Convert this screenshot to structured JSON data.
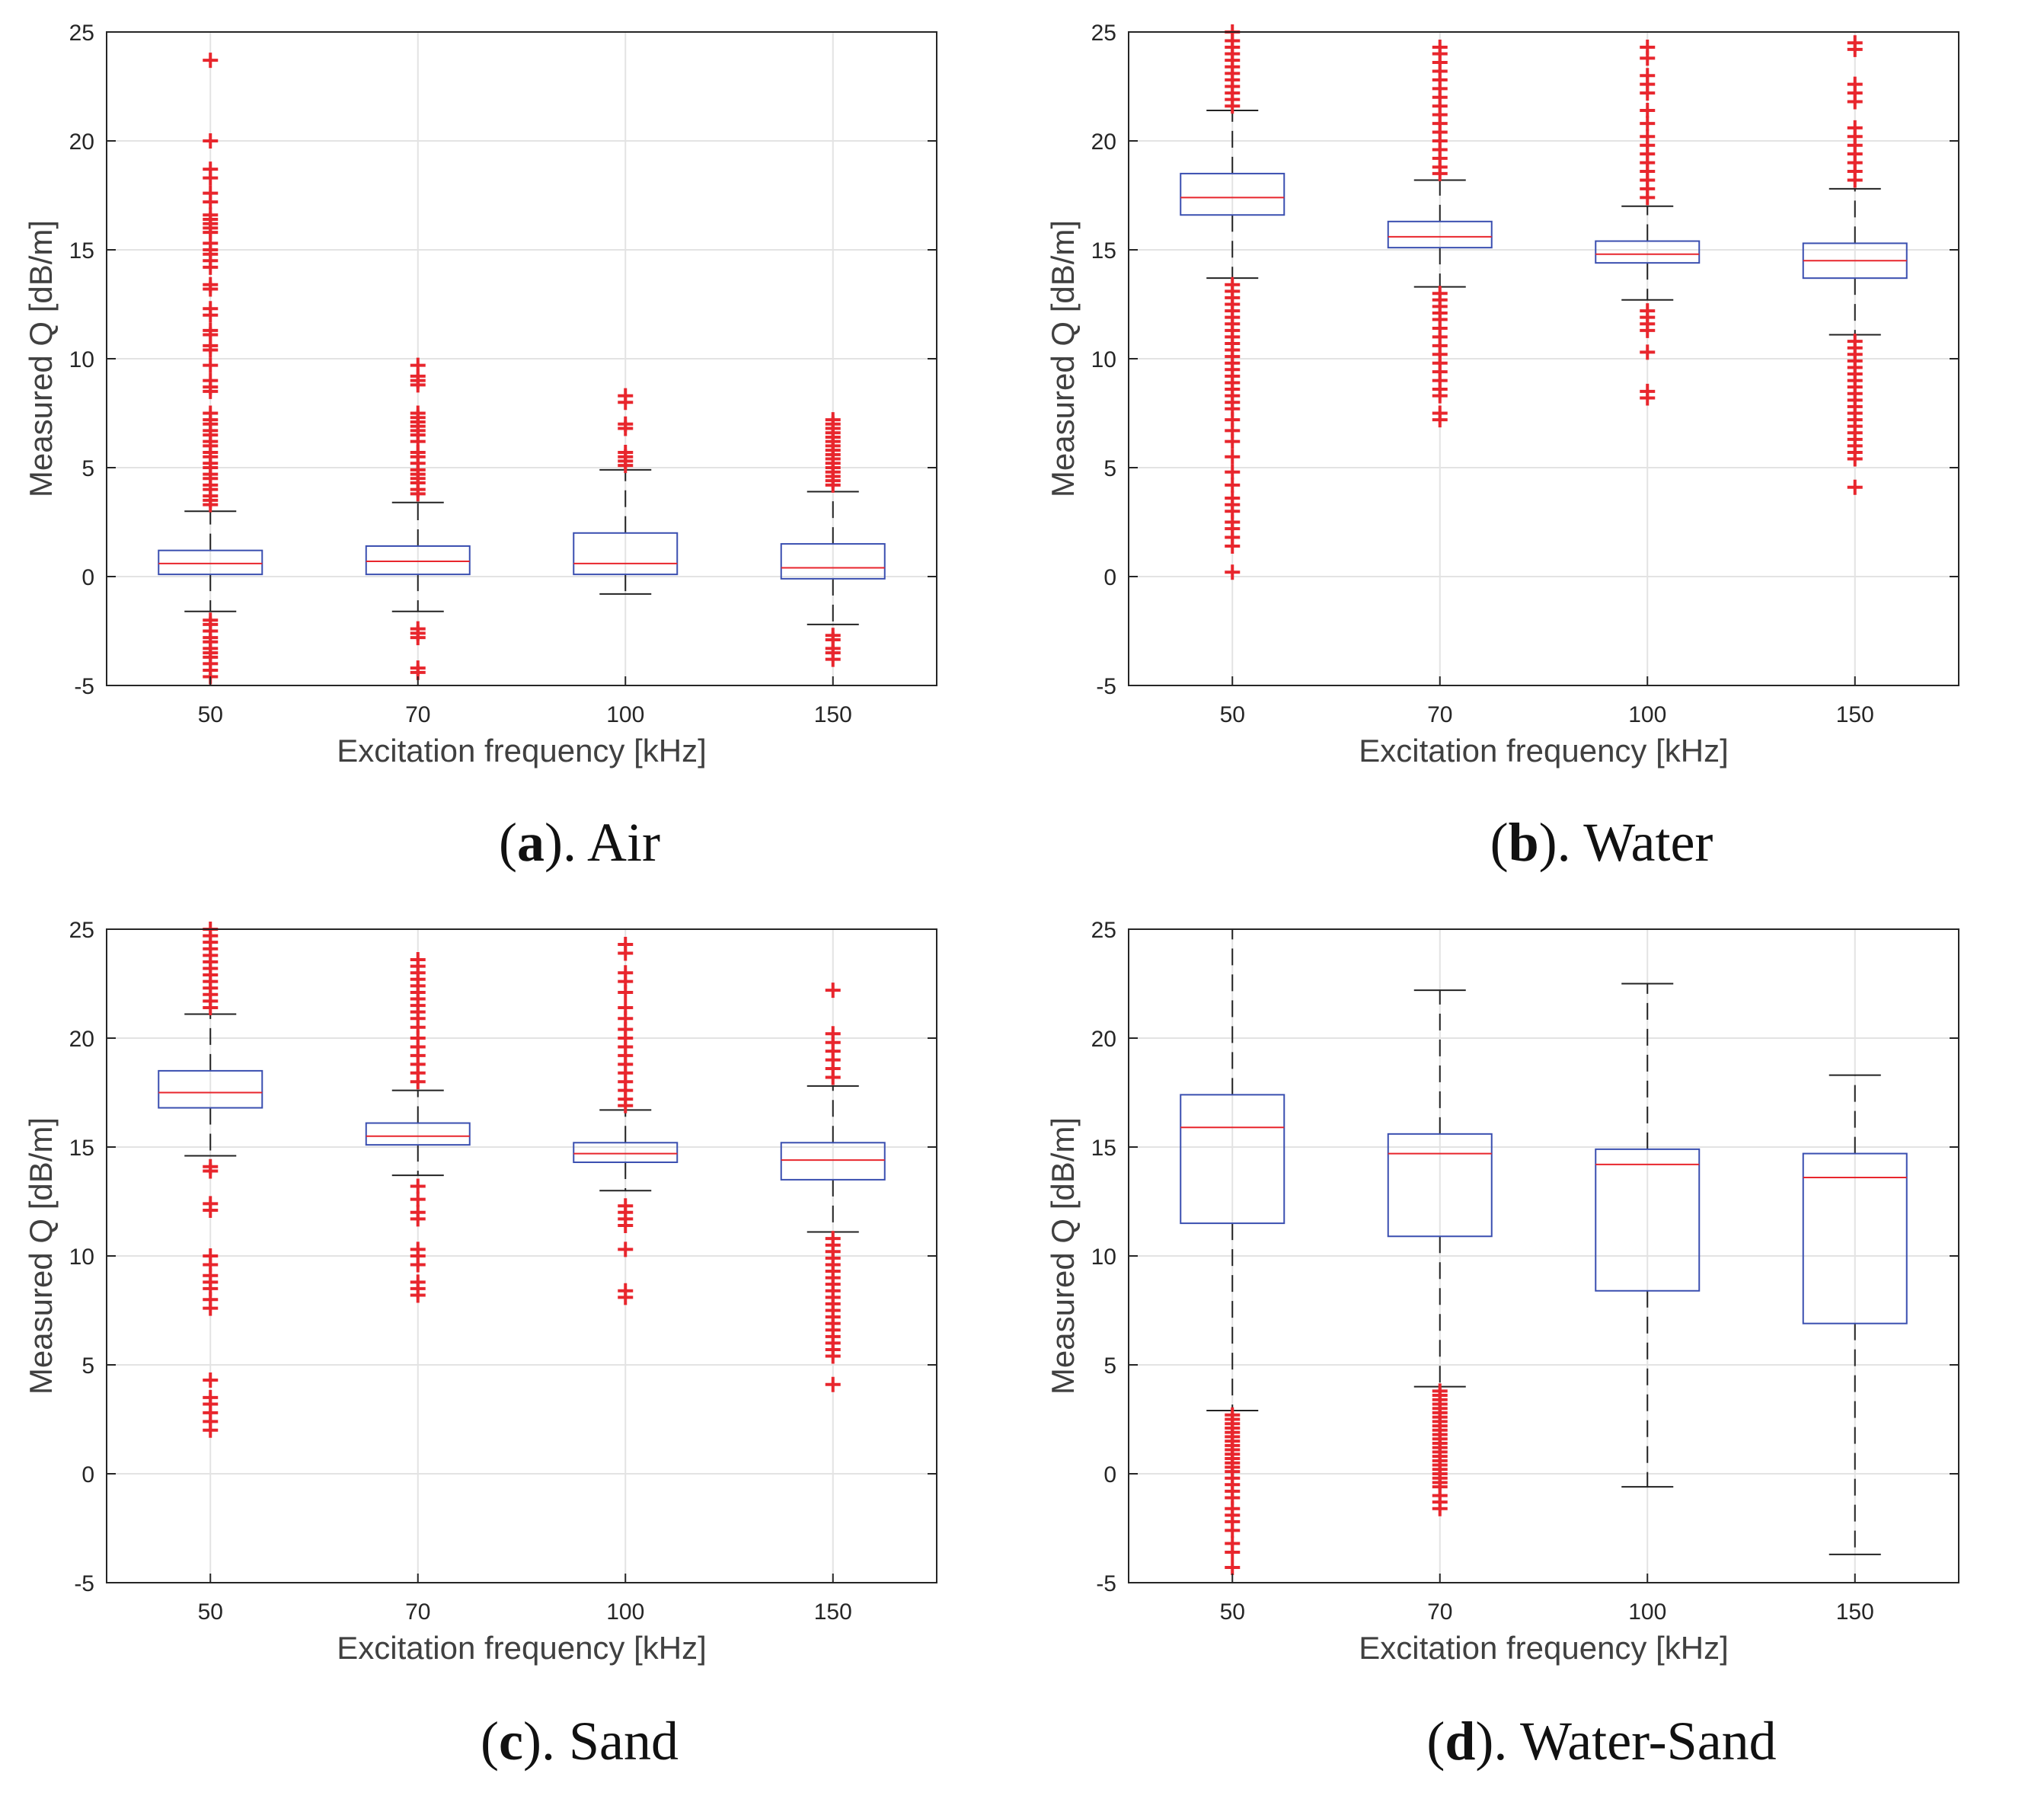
{
  "chart_data": [
    {
      "type": "boxplot",
      "id": "a",
      "caption_letter": "a",
      "caption_text": "). Air",
      "caption_open": "(",
      "xlabel": "Excitation frequency [kHz]",
      "ylabel": "Measured Q [dB/m]",
      "categories": [
        "50",
        "70",
        "100",
        "150"
      ],
      "ylim": [
        -5,
        25
      ],
      "yticks": [
        "-5",
        "0",
        "5",
        "10",
        "15",
        "20",
        "25"
      ],
      "grid": true,
      "colors": {
        "box": "#3a4fb0",
        "median": "#e8262d",
        "whisker": "#222222",
        "outlier": "#e8262d",
        "grid": "#e3e3e3",
        "axis": "#262626"
      },
      "boxes": [
        {
          "q1": 0.1,
          "median": 0.6,
          "q3": 1.2,
          "whisker_low": -1.6,
          "whisker_high": 3.0,
          "outliers": [
            23.7,
            20.0,
            18.7,
            18.3,
            17.6,
            17.2,
            16.6,
            16.4,
            16.2,
            16.0,
            15.8,
            15.3,
            15.0,
            14.8,
            14.5,
            14.2,
            13.4,
            13.2,
            12.3,
            12.0,
            11.3,
            11.1,
            10.6,
            10.4,
            9.7,
            9.0,
            8.7,
            8.5,
            7.5,
            7.2,
            7.0,
            6.7,
            6.5,
            6.2,
            6.0,
            5.7,
            5.5,
            5.2,
            5.0,
            4.7,
            4.5,
            4.2,
            4.0,
            3.7,
            3.5,
            3.3,
            -2.0,
            -2.2,
            -2.5,
            -2.8,
            -3.0,
            -3.3,
            -3.5,
            -3.7,
            -4.0,
            -4.3,
            -4.6
          ]
        },
        {
          "q1": 0.1,
          "median": 0.7,
          "q3": 1.4,
          "whisker_low": -1.6,
          "whisker_high": 3.4,
          "outliers": [
            9.7,
            9.2,
            9.0,
            8.8,
            7.5,
            7.3,
            7.1,
            6.9,
            6.7,
            6.5,
            6.2,
            5.7,
            5.5,
            5.2,
            4.9,
            4.7,
            4.5,
            4.3,
            4.0,
            3.8,
            -2.4,
            -2.6,
            -2.8,
            -4.2,
            -4.4
          ]
        },
        {
          "q1": 0.1,
          "median": 0.6,
          "q3": 2.0,
          "whisker_low": -0.8,
          "whisker_high": 4.9,
          "outliers": [
            8.3,
            8.0,
            7.0,
            6.8,
            5.7,
            5.5,
            5.3,
            5.1
          ]
        },
        {
          "q1": -0.1,
          "median": 0.4,
          "q3": 1.5,
          "whisker_low": -2.2,
          "whisker_high": 3.9,
          "outliers": [
            7.2,
            7.0,
            6.8,
            6.6,
            6.4,
            6.2,
            6.0,
            5.8,
            5.6,
            5.4,
            5.2,
            5.0,
            4.8,
            4.6,
            4.4,
            4.2,
            -2.7,
            -2.9,
            -3.3,
            -3.5,
            -3.8
          ]
        }
      ]
    },
    {
      "type": "boxplot",
      "id": "b",
      "caption_letter": "b",
      "caption_text": "). Water",
      "caption_open": "(",
      "xlabel": "Excitation frequency [kHz]",
      "ylabel": "Measured Q [dB/m]",
      "categories": [
        "50",
        "70",
        "100",
        "150"
      ],
      "ylim": [
        -5,
        25
      ],
      "yticks": [
        "-5",
        "0",
        "5",
        "10",
        "15",
        "20",
        "25"
      ],
      "grid": true,
      "colors": {
        "box": "#3a4fb0",
        "median": "#e8262d",
        "whisker": "#222222",
        "outlier": "#e8262d",
        "grid": "#e3e3e3",
        "axis": "#262626"
      },
      "boxes": [
        {
          "q1": 16.6,
          "median": 17.4,
          "q3": 18.5,
          "whisker_low": 13.7,
          "whisker_high": 21.4,
          "outliers": [
            25.0,
            24.6,
            24.3,
            24.0,
            23.7,
            23.4,
            23.1,
            22.8,
            22.5,
            22.2,
            21.9,
            21.6,
            13.4,
            13.1,
            12.8,
            12.5,
            12.2,
            11.9,
            11.6,
            11.3,
            11.0,
            10.7,
            10.4,
            10.1,
            9.8,
            9.5,
            9.2,
            8.9,
            8.6,
            8.3,
            8.0,
            7.7,
            7.2,
            6.7,
            6.2,
            5.5,
            4.8,
            4.2,
            3.6,
            3.3,
            3.0,
            2.5,
            2.2,
            1.8,
            1.4,
            0.2
          ]
        },
        {
          "q1": 15.1,
          "median": 15.6,
          "q3": 16.3,
          "whisker_low": 13.3,
          "whisker_high": 18.2,
          "outliers": [
            24.3,
            24.0,
            23.6,
            23.2,
            22.8,
            22.4,
            22.0,
            21.6,
            21.2,
            20.8,
            20.4,
            20.0,
            19.6,
            19.2,
            18.8,
            18.5,
            13.0,
            12.7,
            12.4,
            12.1,
            11.8,
            11.4,
            11.0,
            10.6,
            10.2,
            9.8,
            9.4,
            9.0,
            8.6,
            8.3,
            7.5,
            7.2
          ]
        },
        {
          "q1": 14.4,
          "median": 14.8,
          "q3": 15.4,
          "whisker_low": 12.7,
          "whisker_high": 17.0,
          "outliers": [
            24.3,
            23.8,
            23.0,
            22.6,
            22.2,
            21.4,
            20.8,
            20.2,
            19.8,
            19.4,
            19.0,
            18.6,
            18.2,
            17.8,
            17.4,
            12.2,
            11.9,
            11.6,
            11.3,
            10.3,
            8.5,
            8.2
          ]
        },
        {
          "q1": 13.7,
          "median": 14.5,
          "q3": 15.3,
          "whisker_low": 11.1,
          "whisker_high": 17.8,
          "outliers": [
            24.5,
            24.2,
            22.6,
            22.2,
            21.8,
            20.6,
            20.2,
            19.8,
            19.4,
            19.0,
            18.6,
            18.2,
            10.8,
            10.5,
            10.2,
            9.9,
            9.6,
            9.3,
            9.0,
            8.7,
            8.4,
            8.1,
            7.8,
            7.5,
            7.2,
            6.9,
            6.6,
            6.3,
            6.0,
            5.7,
            5.4,
            4.1
          ]
        }
      ]
    },
    {
      "type": "boxplot",
      "id": "c",
      "caption_letter": "c",
      "caption_text": "). Sand",
      "caption_open": "(",
      "xlabel": "Excitation frequency [kHz]",
      "ylabel": "Measured Q [dB/m]",
      "categories": [
        "50",
        "70",
        "100",
        "150"
      ],
      "ylim": [
        -5,
        25
      ],
      "yticks": [
        "-5",
        "0",
        "5",
        "10",
        "15",
        "20",
        "25"
      ],
      "grid": true,
      "colors": {
        "box": "#3a4fb0",
        "median": "#e8262d",
        "whisker": "#222222",
        "outlier": "#e8262d",
        "grid": "#e3e3e3",
        "axis": "#262626"
      },
      "boxes": [
        {
          "q1": 16.8,
          "median": 17.5,
          "q3": 18.5,
          "whisker_low": 14.6,
          "whisker_high": 21.1,
          "outliers": [
            25.0,
            24.7,
            24.4,
            24.1,
            23.8,
            23.5,
            23.2,
            22.9,
            22.6,
            22.3,
            22.0,
            21.7,
            21.4,
            14.1,
            13.9,
            12.4,
            12.1,
            10.0,
            9.6,
            9.1,
            8.8,
            8.5,
            8.0,
            7.6,
            4.3,
            3.5,
            3.2,
            2.8,
            2.4,
            2.0
          ]
        },
        {
          "q1": 15.1,
          "median": 15.5,
          "q3": 16.1,
          "whisker_low": 13.7,
          "whisker_high": 17.6,
          "outliers": [
            23.6,
            23.3,
            23.0,
            22.7,
            22.4,
            22.1,
            21.8,
            21.5,
            21.2,
            20.9,
            20.5,
            20.0,
            19.6,
            19.2,
            18.8,
            18.4,
            18.0,
            13.2,
            12.6,
            12.0,
            11.7,
            10.3,
            10.0,
            9.6,
            8.8,
            8.5,
            8.2
          ]
        },
        {
          "q1": 14.3,
          "median": 14.7,
          "q3": 15.2,
          "whisker_low": 13.0,
          "whisker_high": 16.7,
          "outliers": [
            24.3,
            23.9,
            23.0,
            22.6,
            22.1,
            21.4,
            20.9,
            20.4,
            20.0,
            19.6,
            19.2,
            18.8,
            18.4,
            18.0,
            17.6,
            17.2,
            16.9,
            12.3,
            12.0,
            11.7,
            11.4,
            10.3,
            8.4,
            8.1
          ]
        },
        {
          "q1": 13.5,
          "median": 14.4,
          "q3": 15.2,
          "whisker_low": 11.1,
          "whisker_high": 17.8,
          "outliers": [
            22.2,
            20.2,
            19.8,
            19.4,
            19.0,
            18.6,
            18.2,
            10.8,
            10.5,
            10.2,
            9.9,
            9.6,
            9.3,
            9.0,
            8.7,
            8.4,
            8.1,
            7.8,
            7.5,
            7.2,
            6.9,
            6.6,
            6.3,
            6.0,
            5.7,
            5.4,
            4.1
          ]
        }
      ]
    },
    {
      "type": "boxplot",
      "id": "d",
      "caption_letter": "d",
      "caption_text": "). Water-Sand",
      "caption_open": "(",
      "xlabel": "Excitation frequency [kHz]",
      "ylabel": "Measured Q [dB/m]",
      "categories": [
        "50",
        "70",
        "100",
        "150"
      ],
      "ylim": [
        -5,
        25
      ],
      "yticks": [
        "-5",
        "0",
        "5",
        "10",
        "15",
        "20",
        "25"
      ],
      "grid": true,
      "colors": {
        "box": "#3a4fb0",
        "median": "#e8262d",
        "whisker": "#222222",
        "outlier": "#e8262d",
        "grid": "#e3e3e3",
        "axis": "#262626"
      },
      "boxes": [
        {
          "q1": 11.5,
          "median": 15.9,
          "q3": 17.4,
          "whisker_low": 2.9,
          "whisker_high": 25.0,
          "outliers": [
            2.7,
            2.5,
            2.3,
            2.1,
            1.9,
            1.7,
            1.5,
            1.3,
            1.1,
            0.9,
            0.7,
            0.5,
            0.3,
            0.1,
            -0.2,
            -0.5,
            -0.8,
            -1.1,
            -1.6,
            -1.9,
            -2.2,
            -2.6,
            -3.2,
            -3.6,
            -4.3
          ]
        },
        {
          "q1": 10.9,
          "median": 14.7,
          "q3": 15.6,
          "whisker_low": 4.0,
          "whisker_high": 22.2,
          "outliers": [
            3.8,
            3.6,
            3.4,
            3.2,
            3.0,
            2.8,
            2.6,
            2.4,
            2.2,
            2.0,
            1.8,
            1.6,
            1.4,
            1.2,
            1.0,
            0.8,
            0.6,
            0.4,
            0.2,
            0.0,
            -0.2,
            -0.4,
            -0.6,
            -1.0,
            -1.3,
            -1.6
          ]
        },
        {
          "q1": 8.4,
          "median": 14.2,
          "q3": 14.9,
          "whisker_low": -0.6,
          "whisker_high": 22.5,
          "outliers": []
        },
        {
          "q1": 6.9,
          "median": 13.6,
          "q3": 14.7,
          "whisker_low": -3.7,
          "whisker_high": 18.3,
          "outliers": []
        }
      ]
    }
  ]
}
